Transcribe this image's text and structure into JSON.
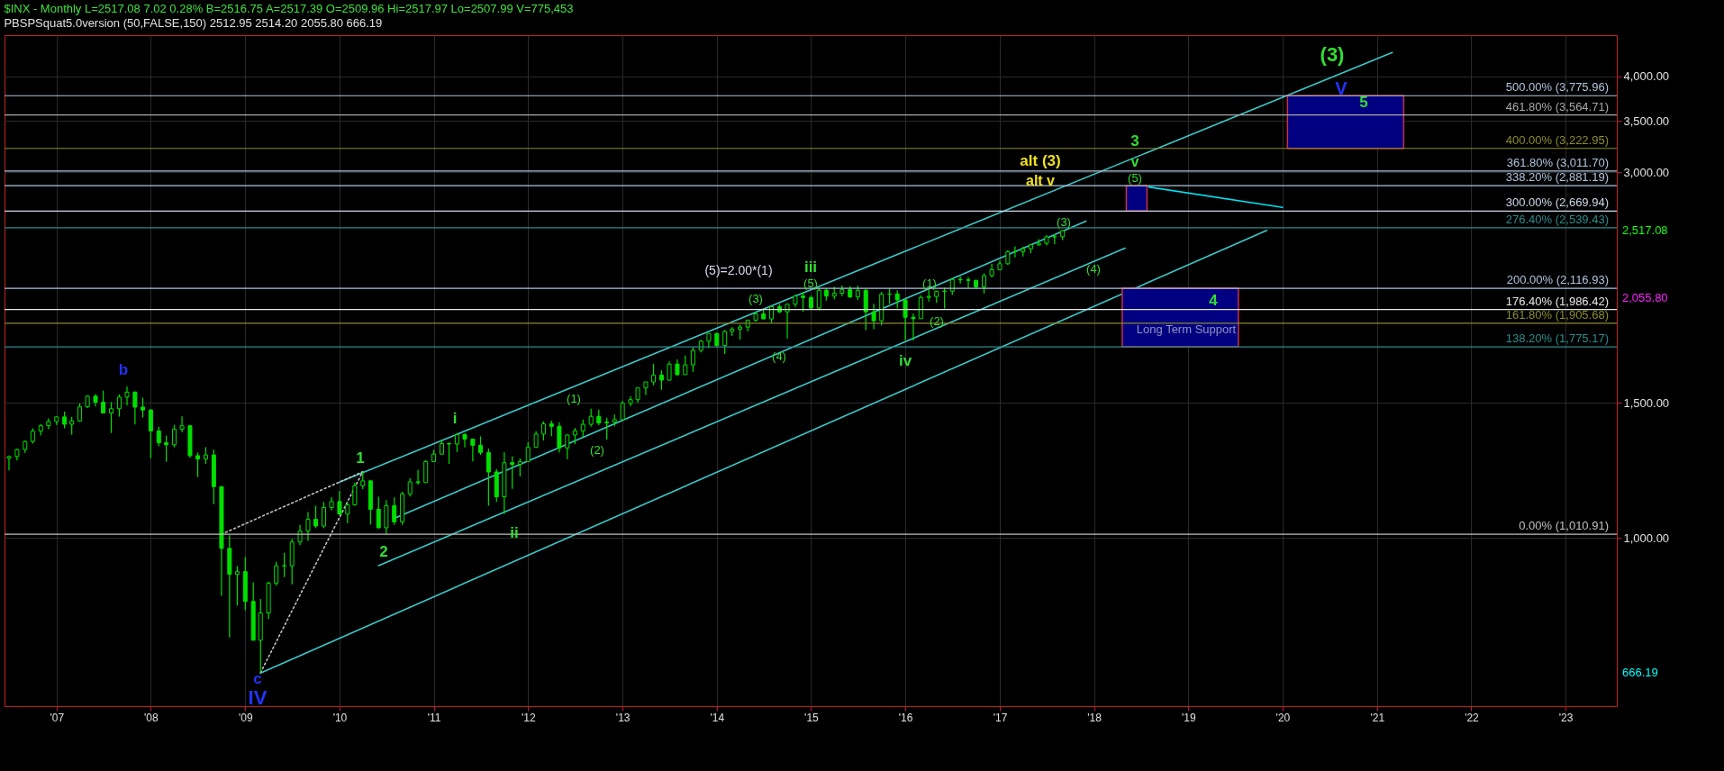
{
  "chart_data": {
    "type": "candlestick",
    "title": "$INX - Monthly   L=2517.08  7.02  0.28%   B=2516.75   A=2517.39   O=2509.96   Hi=2517.97   Lo=2507.99   V=775,453",
    "subtitle": "PBSPSquat5.0version (50,FALSE,150)   2512.95   2514.20   2055.80   666.19",
    "color": "#00e000",
    "x": [
      "2006-07",
      "2006-08",
      "2006-09",
      "2006-10",
      "2006-11",
      "2006-12",
      "2007-01",
      "2007-02",
      "2007-03",
      "2007-04",
      "2007-05",
      "2007-06",
      "2007-07",
      "2007-08",
      "2007-09",
      "2007-10",
      "2007-11",
      "2007-12",
      "2008-01",
      "2008-02",
      "2008-03",
      "2008-04",
      "2008-05",
      "2008-06",
      "2008-07",
      "2008-08",
      "2008-09",
      "2008-10",
      "2008-11",
      "2008-12",
      "2009-01",
      "2009-02",
      "2009-03",
      "2009-04",
      "2009-05",
      "2009-06",
      "2009-07",
      "2009-08",
      "2009-09",
      "2009-10",
      "2009-11",
      "2009-12",
      "2010-01",
      "2010-02",
      "2010-03",
      "2010-04",
      "2010-05",
      "2010-06",
      "2010-07",
      "2010-08",
      "2010-09",
      "2010-10",
      "2010-11",
      "2010-12",
      "2011-01",
      "2011-02",
      "2011-03",
      "2011-04",
      "2011-05",
      "2011-06",
      "2011-07",
      "2011-08",
      "2011-09",
      "2011-10",
      "2011-11",
      "2011-12",
      "2012-01",
      "2012-02",
      "2012-03",
      "2012-04",
      "2012-05",
      "2012-06",
      "2012-07",
      "2012-08",
      "2012-09",
      "2012-10",
      "2012-11",
      "2012-12",
      "2013-01",
      "2013-02",
      "2013-03",
      "2013-04",
      "2013-05",
      "2013-06",
      "2013-07",
      "2013-08",
      "2013-09",
      "2013-10",
      "2013-11",
      "2013-12",
      "2014-01",
      "2014-02",
      "2014-03",
      "2014-04",
      "2014-05",
      "2014-06",
      "2014-07",
      "2014-08",
      "2014-09",
      "2014-10",
      "2014-11",
      "2014-12",
      "2015-01",
      "2015-02",
      "2015-03",
      "2015-04",
      "2015-05",
      "2015-06",
      "2015-07",
      "2015-08",
      "2015-09",
      "2015-10",
      "2015-11",
      "2015-12",
      "2016-01",
      "2016-02",
      "2016-03",
      "2016-04",
      "2016-05",
      "2016-06",
      "2016-07",
      "2016-08",
      "2016-09",
      "2016-10",
      "2016-11",
      "2016-12",
      "2017-01",
      "2017-02",
      "2017-03",
      "2017-04",
      "2017-05",
      "2017-06",
      "2017-07",
      "2017-08",
      "2017-09"
    ],
    "ohlc": [
      [
        1270.1,
        1280.4,
        1224.5,
        1276.7
      ],
      [
        1276.7,
        1306.7,
        1261.3,
        1303.8
      ],
      [
        1303.8,
        1340.3,
        1290.9,
        1335.9
      ],
      [
        1335.9,
        1389.5,
        1327.1,
        1377.9
      ],
      [
        1377.9,
        1407.9,
        1360.5,
        1400.6
      ],
      [
        1400.6,
        1431.8,
        1385.9,
        1418.3
      ],
      [
        1418.3,
        1441.6,
        1403.9,
        1438.2
      ],
      [
        1438.2,
        1461.6,
        1389.7,
        1406.8
      ],
      [
        1406.8,
        1438.9,
        1363.9,
        1420.9
      ],
      [
        1420.9,
        1498.0,
        1416.4,
        1482.4
      ],
      [
        1482.4,
        1535.6,
        1476.7,
        1530.6
      ],
      [
        1530.6,
        1540.6,
        1484.2,
        1503.4
      ],
      [
        1503.4,
        1555.9,
        1454.3,
        1455.3
      ],
      [
        1455.3,
        1503.9,
        1370.6,
        1474.0
      ],
      [
        1474.0,
        1538.7,
        1439.3,
        1526.8
      ],
      [
        1526.8,
        1576.1,
        1489.6,
        1549.4
      ],
      [
        1549.4,
        1552.8,
        1406.1,
        1481.1
      ],
      [
        1481.1,
        1523.6,
        1435.7,
        1468.4
      ],
      [
        1468.4,
        1471.8,
        1270.1,
        1378.6
      ],
      [
        1378.6,
        1396.0,
        1316.8,
        1330.6
      ],
      [
        1330.6,
        1359.7,
        1256.9,
        1322.7
      ],
      [
        1322.7,
        1404.6,
        1312.3,
        1385.6
      ],
      [
        1385.6,
        1440.2,
        1373.1,
        1400.4
      ],
      [
        1400.4,
        1404.1,
        1272.0,
        1280.0
      ],
      [
        1280.0,
        1292.2,
        1200.4,
        1267.4
      ],
      [
        1267.4,
        1313.2,
        1248.6,
        1282.8
      ],
      [
        1282.8,
        1303.0,
        1106.4,
        1166.4
      ],
      [
        1166.4,
        1167.0,
        839.8,
        968.8
      ],
      [
        968.8,
        1007.5,
        741.0,
        896.2
      ],
      [
        896.2,
        918.9,
        815.7,
        903.3
      ],
      [
        903.3,
        943.9,
        804.3,
        825.9
      ],
      [
        825.9,
        875.0,
        734.5,
        735.1
      ],
      [
        735.1,
        832.0,
        666.8,
        797.9
      ],
      [
        797.9,
        876.9,
        783.3,
        872.8
      ],
      [
        872.8,
        930.2,
        866.1,
        919.1
      ],
      [
        919.1,
        956.2,
        888.9,
        919.3
      ],
      [
        919.3,
        996.7,
        869.3,
        987.5
      ],
      [
        987.5,
        1039.5,
        978.5,
        1020.6
      ],
      [
        1020.6,
        1080.2,
        991.0,
        1057.1
      ],
      [
        1057.1,
        1101.4,
        1029.4,
        1036.2
      ],
      [
        1036.2,
        1113.7,
        1029.4,
        1095.6
      ],
      [
        1095.6,
        1130.4,
        1085.9,
        1115.1
      ],
      [
        1115.1,
        1150.5,
        1071.6,
        1073.9
      ],
      [
        1073.9,
        1112.4,
        1044.5,
        1104.5
      ],
      [
        1104.5,
        1180.2,
        1101.4,
        1169.4
      ],
      [
        1169.4,
        1219.8,
        1157.4,
        1186.7
      ],
      [
        1186.7,
        1188.6,
        1040.8,
        1089.4
      ],
      [
        1089.4,
        1131.2,
        1028.3,
        1030.7
      ],
      [
        1030.7,
        1120.0,
        1010.9,
        1101.6
      ],
      [
        1101.6,
        1129.2,
        1039.7,
        1049.3
      ],
      [
        1049.3,
        1148.7,
        1039.7,
        1141.2
      ],
      [
        1141.2,
        1196.1,
        1131.9,
        1183.3
      ],
      [
        1183.3,
        1227.1,
        1173.0,
        1180.6
      ],
      [
        1180.6,
        1262.6,
        1180.6,
        1257.6
      ],
      [
        1257.6,
        1302.7,
        1257.6,
        1286.1
      ],
      [
        1286.1,
        1344.1,
        1282.9,
        1327.2
      ],
      [
        1327.2,
        1332.3,
        1249.1,
        1325.8
      ],
      [
        1325.8,
        1370.6,
        1294.7,
        1363.6
      ],
      [
        1363.6,
        1370.6,
        1311.8,
        1345.2
      ],
      [
        1345.2,
        1345.2,
        1258.1,
        1320.6
      ],
      [
        1320.6,
        1356.5,
        1282.9,
        1292.3
      ],
      [
        1292.3,
        1307.4,
        1101.5,
        1218.9
      ],
      [
        1218.9,
        1229.3,
        1114.2,
        1131.4
      ],
      [
        1131.4,
        1292.7,
        1074.8,
        1253.3
      ],
      [
        1253.3,
        1277.6,
        1158.7,
        1247.0
      ],
      [
        1247.0,
        1269.4,
        1202.4,
        1257.6
      ],
      [
        1257.6,
        1333.5,
        1257.6,
        1312.4
      ],
      [
        1312.4,
        1378.0,
        1312.4,
        1366.0
      ],
      [
        1366.0,
        1419.2,
        1340.0,
        1408.5
      ],
      [
        1408.5,
        1422.4,
        1357.4,
        1397.9
      ],
      [
        1397.9,
        1415.3,
        1291.9,
        1310.3
      ],
      [
        1310.3,
        1363.5,
        1266.7,
        1362.2
      ],
      [
        1362.2,
        1391.7,
        1325.4,
        1379.3
      ],
      [
        1379.3,
        1426.7,
        1354.7,
        1406.6
      ],
      [
        1406.6,
        1474.5,
        1396.6,
        1440.7
      ],
      [
        1440.7,
        1470.0,
        1403.3,
        1412.2
      ],
      [
        1412.2,
        1434.3,
        1343.4,
        1416.2
      ],
      [
        1416.2,
        1448.0,
        1398.1,
        1426.2
      ],
      [
        1426.2,
        1509.9,
        1426.2,
        1498.1
      ],
      [
        1498.1,
        1530.9,
        1485.0,
        1514.7
      ],
      [
        1514.7,
        1570.3,
        1501.5,
        1569.2
      ],
      [
        1569.2,
        1597.6,
        1536.0,
        1597.6
      ],
      [
        1597.6,
        1687.2,
        1581.3,
        1630.7
      ],
      [
        1630.7,
        1654.2,
        1560.3,
        1606.3
      ],
      [
        1606.3,
        1698.8,
        1604.6,
        1685.7
      ],
      [
        1685.7,
        1709.7,
        1627.5,
        1633.0
      ],
      [
        1633.0,
        1729.9,
        1633.0,
        1681.6
      ],
      [
        1681.6,
        1775.2,
        1646.5,
        1756.5
      ],
      [
        1756.5,
        1813.6,
        1746.2,
        1805.8
      ],
      [
        1805.8,
        1849.4,
        1767.9,
        1848.4
      ],
      [
        1848.4,
        1850.8,
        1770.5,
        1782.6
      ],
      [
        1782.6,
        1867.9,
        1737.9,
        1859.5
      ],
      [
        1859.5,
        1883.9,
        1834.4,
        1872.3
      ],
      [
        1872.3,
        1897.3,
        1814.4,
        1883.9
      ],
      [
        1883.9,
        1924.0,
        1859.8,
        1923.6
      ],
      [
        1923.6,
        1968.2,
        1915.0,
        1960.2
      ],
      [
        1960.2,
        1991.4,
        1930.7,
        1930.7
      ],
      [
        1930.7,
        2005.0,
        1904.8,
        2003.4
      ],
      [
        2003.4,
        2019.3,
        1964.0,
        1972.3
      ],
      [
        1972.3,
        2018.2,
        1820.7,
        2018.1
      ],
      [
        2018.1,
        2075.8,
        2001.0,
        2067.6
      ],
      [
        2067.6,
        2093.6,
        1972.6,
        2058.9
      ],
      [
        2058.9,
        2072.4,
        1988.1,
        1995.0
      ],
      [
        1995.0,
        2119.6,
        1980.9,
        2104.5
      ],
      [
        2104.5,
        2117.5,
        2039.7,
        2067.9
      ],
      [
        2067.9,
        2125.9,
        2048.4,
        2085.5
      ],
      [
        2085.5,
        2134.7,
        2067.9,
        2107.4
      ],
      [
        2107.4,
        2130.0,
        2056.3,
        2063.1
      ],
      [
        2063.1,
        2132.8,
        2044.0,
        2103.8
      ],
      [
        2103.8,
        2112.7,
        1867.0,
        1972.2
      ],
      [
        1972.2,
        2020.9,
        1871.9,
        1920.0
      ],
      [
        1920.0,
        2094.3,
        1893.7,
        2079.4
      ],
      [
        2079.4,
        2116.5,
        2019.4,
        2080.4
      ],
      [
        2080.4,
        2104.3,
        1993.3,
        2043.9
      ],
      [
        2043.9,
        2045.0,
        1812.3,
        1940.2
      ],
      [
        1940.2,
        1963.0,
        1810.1,
        1932.2
      ],
      [
        1932.2,
        2072.2,
        1931.8,
        2059.7
      ],
      [
        2059.7,
        2111.1,
        2033.8,
        2065.3
      ],
      [
        2065.3,
        2103.5,
        2025.9,
        2096.9
      ],
      [
        2096.9,
        2120.6,
        1991.7,
        2098.9
      ],
      [
        2098.9,
        2177.1,
        2074.0,
        2173.6
      ],
      [
        2173.6,
        2193.8,
        2147.6,
        2170.9
      ],
      [
        2170.9,
        2187.9,
        2119.1,
        2168.3
      ],
      [
        2168.3,
        2169.6,
        2114.7,
        2126.2
      ],
      [
        2126.2,
        2214.1,
        2084.0,
        2199.0
      ],
      [
        2199.0,
        2277.5,
        2187.4,
        2238.8
      ],
      [
        2238.8,
        2301.0,
        2233.6,
        2278.9
      ],
      [
        2278.9,
        2371.5,
        2271.7,
        2363.6
      ],
      [
        2363.6,
        2400.9,
        2322.3,
        2362.7
      ],
      [
        2362.7,
        2398.2,
        2328.9,
        2384.2
      ],
      [
        2384.2,
        2418.7,
        2352.7,
        2411.8
      ],
      [
        2411.8,
        2454.0,
        2405.7,
        2423.4
      ],
      [
        2423.4,
        2484.0,
        2407.7,
        2470.3
      ],
      [
        2470.3,
        2490.9,
        2417.4,
        2471.7
      ],
      [
        2471.7,
        2519.4,
        2446.6,
        2517.1
      ]
    ],
    "series": [
      {
        "type": "line",
        "color": "#3cc8c8",
        "x": [
          "2010-01",
          "2021-03"
        ],
        "values": [
          1182,
          4300
        ]
      },
      {
        "type": "line",
        "color": "#3cc8c8",
        "x": [
          "2010-08",
          "2017-12"
        ],
        "values": [
          1060,
          2590
        ]
      },
      {
        "type": "line",
        "color": "#3cc8c8",
        "x": [
          "2010-06",
          "2018-05"
        ],
        "values": [
          920,
          2388
        ]
      },
      {
        "type": "line",
        "color": "#3cc8c8",
        "x": [
          "2009-03",
          "2019-11"
        ],
        "values": [
          666.19,
          2520
        ]
      },
      {
        "type": "line",
        "color": "#00e0f0",
        "x": [
          "2018-08",
          "2020-01"
        ],
        "values": [
          2870,
          2700
        ]
      },
      {
        "type": "line",
        "color": "#c0c0c0",
        "line_style": "dotted",
        "x": [
          "2008-10",
          "2010-04"
        ],
        "values": [
          1010.91,
          1219.8
        ]
      },
      {
        "type": "line",
        "color": "#c0c0c0",
        "line_style": "dotted",
        "x": [
          "2009-03",
          "2010-04"
        ],
        "values": [
          666.8,
          1219.8
        ]
      },
      {
        "type": "bar",
        "color": "#000080",
        "x": [
          "2018-06-15",
          "2018-12",
          "2020-09"
        ],
        "base": [
          2669.94,
          1775.17,
          3222.95
        ],
        "values": [
          211.25,
          341.76,
          553.01
        ]
      }
    ],
    "ref_lines": [
      {
        "axis": "y",
        "value": 3775.96,
        "label": "500.00% (3,775.96)",
        "color": "#b0c4de"
      },
      {
        "axis": "y",
        "value": 3564.71,
        "label": "461.80% (3,564.71)",
        "color": "#a9a9a9"
      },
      {
        "axis": "y",
        "value": 3222.95,
        "label": "400.00% (3,222.95)",
        "color": "#8b8b2e"
      },
      {
        "axis": "y",
        "value": 3011.7,
        "label": "361.80% (3,011.70)",
        "color": "#b0c4de"
      },
      {
        "axis": "y",
        "value": 2881.19,
        "label": "338.20% (2,881.19)",
        "color": "#b0c4de"
      },
      {
        "axis": "y",
        "value": 2669.94,
        "label": "300.00% (2,669.94)",
        "color": "#d0d8e8"
      },
      {
        "axis": "y",
        "value": 2539.43,
        "label": "276.40% (2,539.43)",
        "color": "#2e8b8b"
      },
      {
        "axis": "y",
        "value": 2116.93,
        "label": "200.00% (2,116.93)",
        "color": "#b0c4de"
      },
      {
        "axis": "y",
        "value": 1986.42,
        "label": "176.40% (1,986.42)",
        "color": "#e8e8e8"
      },
      {
        "axis": "y",
        "value": 1905.68,
        "label": "161.80% (1,905.68)",
        "color": "#8b8b2e"
      },
      {
        "axis": "y",
        "value": 1775.17,
        "label": "138.20% (1,775.17)",
        "color": "#2e8b8b"
      },
      {
        "axis": "y",
        "value": 1010.91,
        "label": "0.00% (1,010.91)",
        "color": "#c0c0c0"
      }
    ],
    "annotations": [
      "b",
      "c",
      "IV",
      "1",
      "2",
      "i",
      "ii",
      "(1)",
      "(2)",
      "(3)",
      "(4)",
      "(5)",
      "iii",
      "(5)=2.00*(1)",
      "iv",
      "(1)",
      "(2)",
      "(3)",
      "(4)",
      "(5)",
      "v",
      "3",
      "alt (3)",
      "alt v",
      "4",
      "5",
      "V",
      "(3)",
      "Long Term Support",
      "2,517.08",
      "2,055.80",
      "666.19"
    ],
    "xlim": [
      "2006-07",
      "2023-07"
    ],
    "xticks": [
      {
        "value": "2007-01",
        "label": "'07"
      },
      {
        "value": "2008-01",
        "label": "'08"
      },
      {
        "value": "2009-01",
        "label": "'09"
      },
      {
        "value": "2010-01",
        "label": "'10"
      },
      {
        "value": "2011-01",
        "label": "'11"
      },
      {
        "value": "2012-01",
        "label": "'12"
      },
      {
        "value": "2013-01",
        "label": "'13"
      },
      {
        "value": "2014-01",
        "label": "'14"
      },
      {
        "value": "2015-01",
        "label": "'15"
      },
      {
        "value": "2016-01",
        "label": "'16"
      },
      {
        "value": "2017-01",
        "label": "'17"
      },
      {
        "value": "2018-01",
        "label": "'18"
      },
      {
        "value": "2019-01",
        "label": "'19"
      },
      {
        "value": "2020-01",
        "label": "'20"
      },
      {
        "value": "2021-01",
        "label": "'21"
      },
      {
        "value": "2022-01",
        "label": "'22"
      },
      {
        "value": "2023-01",
        "label": "'23"
      }
    ],
    "ylim": [
      603,
      4530
    ],
    "yticks": [
      {
        "value": 1000,
        "label": "1,000.00"
      },
      {
        "value": 1500,
        "label": "1,500.00"
      },
      {
        "value": 3000,
        "label": "3,000.00"
      },
      {
        "value": 3500,
        "label": "3,500.00"
      },
      {
        "value": 4000,
        "label": "4,000.00"
      }
    ],
    "log": true,
    "grid": true
  }
}
